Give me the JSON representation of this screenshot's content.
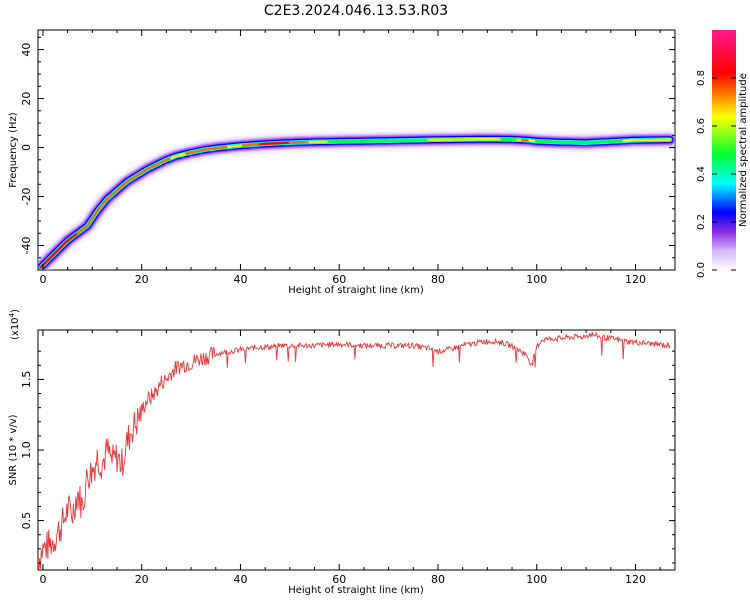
{
  "title": "C2E3.2024.046.13.53.R03",
  "chart_data": [
    {
      "type": "heatmap",
      "xlabel": "Height of straight line (km)",
      "ylabel": "Frequency (Hz)",
      "xlim": [
        -1,
        128
      ],
      "ylim": [
        -50,
        48
      ],
      "xticks": [
        0,
        20,
        40,
        60,
        80,
        100,
        120
      ],
      "yticks": [
        -40,
        -20,
        0,
        20,
        40
      ],
      "colorbar": {
        "label": "Normalized spectral amplitude",
        "range": [
          0.0,
          1.0
        ],
        "ticks": [
          0.0,
          0.2,
          0.4,
          0.6,
          0.8
        ],
        "colors": [
          "#ffffff",
          "#d4b6ff",
          "#8a2be2",
          "#0000ff",
          "#00ffff",
          "#00ff33",
          "#ffff00",
          "#ff0000",
          "#ff1a8c"
        ]
      },
      "ridge": {
        "x": [
          -0.5,
          1,
          3,
          5,
          7,
          9,
          11,
          13,
          15,
          17,
          19,
          21,
          23,
          25,
          27,
          30,
          33,
          36,
          40,
          45,
          50,
          55,
          60,
          70,
          80,
          90,
          95,
          98,
          100,
          105,
          110,
          115,
          120,
          127
        ],
        "y": [
          -49,
          -46,
          -42,
          -38,
          -35,
          -32,
          -26,
          -21,
          -17.5,
          -14,
          -11.5,
          -9,
          -7,
          -5,
          -3.5,
          -2,
          -0.8,
          0,
          0.8,
          1.5,
          2,
          2.3,
          2.5,
          2.8,
          3.2,
          3.4,
          3.3,
          3,
          2.6,
          2.2,
          2,
          2.5,
          3,
          3.2
        ],
        "amplitude": [
          1,
          1,
          1,
          1,
          0.9,
          0.8,
          0.8,
          0.85,
          0.85,
          0.8,
          0.8,
          0.8,
          0.8,
          0.8,
          0.75,
          0.8,
          0.85,
          0.8,
          0.75,
          0.95,
          0.9,
          0.75,
          0.6,
          0.6,
          0.7,
          0.75,
          0.6,
          0.85,
          0.6,
          0.6,
          0.65,
          0.6,
          0.75,
          0.7
        ]
      }
    },
    {
      "type": "line",
      "xlabel": "Height of straight line (km)",
      "ylabel": "SNR (10 * v/v)",
      "y_multiplier": "(x10",
      "y_multiplier_exp": "4",
      "y_multiplier_close": ")",
      "xlim": [
        -1,
        128
      ],
      "ylim": [
        0.15,
        1.85
      ],
      "xticks": [
        0,
        20,
        40,
        60,
        80,
        100,
        120
      ],
      "yticks": [
        0.5,
        1.0,
        1.5
      ],
      "ytick_labels": [
        "0.5",
        "1.0",
        "1.5"
      ],
      "color": "#e8393c",
      "series": [
        {
          "x": [
            -1,
            0,
            1,
            2,
            3,
            4,
            5,
            6,
            7,
            8,
            9,
            10,
            11,
            12,
            13,
            14,
            15,
            16,
            17,
            18,
            19,
            20,
            21,
            22,
            23,
            24,
            25,
            26,
            27,
            28,
            30,
            32,
            34,
            36,
            38,
            40,
            42,
            44,
            46,
            48,
            50,
            55,
            60,
            65,
            70,
            75,
            78,
            80,
            82,
            85,
            88,
            90,
            92,
            94,
            96,
            98,
            99,
            100,
            101,
            103,
            105,
            107,
            109,
            111,
            113,
            115,
            118,
            121,
            124,
            127
          ],
          "values": [
            0.22,
            0.3,
            0.32,
            0.35,
            0.42,
            0.48,
            0.58,
            0.55,
            0.7,
            0.6,
            0.82,
            0.85,
            0.95,
            0.9,
            1.0,
            0.92,
            0.95,
            0.9,
            1.05,
            1.15,
            1.2,
            1.28,
            1.35,
            1.38,
            1.42,
            1.48,
            1.5,
            1.55,
            1.58,
            1.6,
            1.62,
            1.65,
            1.67,
            1.69,
            1.7,
            1.71,
            1.72,
            1.73,
            1.73,
            1.74,
            1.74,
            1.74,
            1.75,
            1.74,
            1.74,
            1.74,
            1.72,
            1.7,
            1.71,
            1.74,
            1.76,
            1.77,
            1.77,
            1.75,
            1.72,
            1.67,
            1.6,
            1.73,
            1.78,
            1.79,
            1.79,
            1.8,
            1.8,
            1.82,
            1.8,
            1.79,
            1.77,
            1.76,
            1.75,
            1.74
          ]
        }
      ]
    }
  ]
}
